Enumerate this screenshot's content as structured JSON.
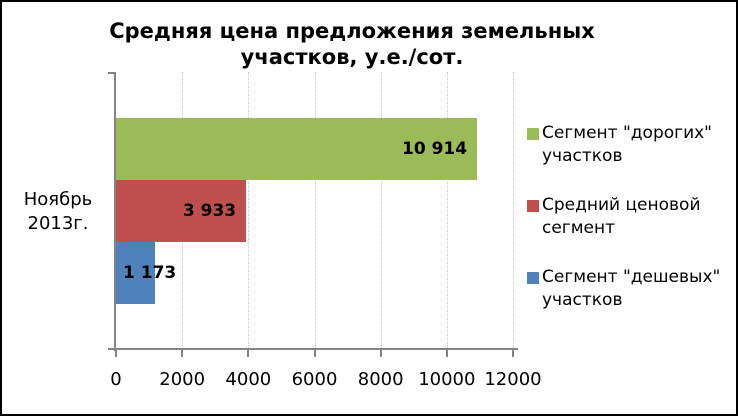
{
  "chart_data": {
    "type": "bar",
    "orientation": "horizontal",
    "title": "Средняя цена предложения земельных участков, у.е./сот.",
    "title_wrapped": "Средняя цена предложения земельных\nучастков, у.е./сот.",
    "categories": [
      "Ноябрь 2013г."
    ],
    "category_wrapped": "Ноябрь\n2013г.",
    "series": [
      {
        "name": "Сегмент \"дорогих\" участков",
        "name_wrapped": "Сегмент \"дорогих\"\nучастков",
        "value": 10914,
        "data_label": "10 914",
        "color": "#9BBB59"
      },
      {
        "name": "Средний ценовой сегмент",
        "name_wrapped": "Средний ценовой\nсегмент",
        "value": 3933,
        "data_label": "3 933",
        "color": "#C0504D"
      },
      {
        "name": "Сегмент \"дешевых\" участков",
        "name_wrapped": "Сегмент \"дешевых\"\nучастков",
        "value": 1173,
        "data_label": "1 173",
        "color": "#4F81BD"
      }
    ],
    "xlim": [
      0,
      12000
    ],
    "x_ticks": [
      0,
      2000,
      4000,
      6000,
      8000,
      10000,
      12000
    ],
    "x_tick_labels": [
      "0",
      "2000",
      "4000",
      "6000",
      "8000",
      "10000",
      "12000"
    ],
    "legend_position": "right",
    "grid": "vertical-dotted",
    "colors": {
      "axis": "#848484",
      "gridline": "#C8C8C8",
      "text": "#000000",
      "background": "#FFFFFF",
      "frame_border": "#000000"
    }
  }
}
